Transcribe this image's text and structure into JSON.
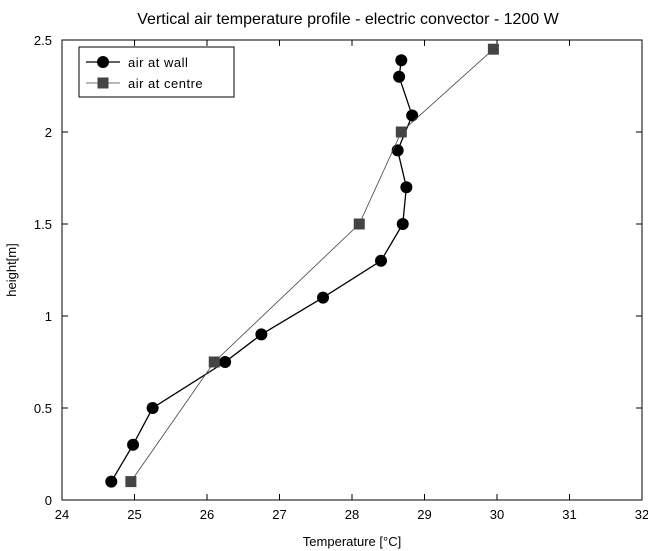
{
  "chart_data": {
    "type": "line",
    "title": "Vertical air temperature profile - electric convector - 1200 W",
    "xlabel": "Temperature [°C]",
    "ylabel": "height[m]",
    "xlim": [
      24,
      32
    ],
    "ylim": [
      0,
      2.5
    ],
    "xticks": [
      24,
      25,
      26,
      27,
      28,
      29,
      30,
      31,
      32
    ],
    "yticks": [
      0,
      0.5,
      1,
      1.5,
      2,
      2.5
    ],
    "xtick_labels": [
      "24",
      "25",
      "26",
      "27",
      "28",
      "29",
      "30",
      "31",
      "32"
    ],
    "ytick_labels": [
      "0",
      "0.5",
      "1",
      "1.5",
      "2",
      "2.5"
    ],
    "grid": false,
    "legend_position": "top-left",
    "series": [
      {
        "name": "air at wall",
        "marker": "circle",
        "color": "#000000",
        "points": [
          [
            24.68,
            0.1
          ],
          [
            24.98,
            0.3
          ],
          [
            25.25,
            0.5
          ],
          [
            26.25,
            0.75
          ],
          [
            26.75,
            0.9
          ],
          [
            27.6,
            1.1
          ],
          [
            28.4,
            1.3
          ],
          [
            28.7,
            1.5
          ],
          [
            28.75,
            1.7
          ],
          [
            28.63,
            1.9
          ],
          [
            28.83,
            2.09
          ],
          [
            28.65,
            2.3
          ],
          [
            28.68,
            2.39
          ]
        ]
      },
      {
        "name": "air at centre",
        "marker": "square",
        "color": "#444444",
        "points": [
          [
            24.95,
            0.1
          ],
          [
            26.1,
            0.75
          ],
          [
            28.1,
            1.5
          ],
          [
            28.68,
            2.0
          ],
          [
            29.95,
            2.45
          ]
        ]
      }
    ]
  }
}
